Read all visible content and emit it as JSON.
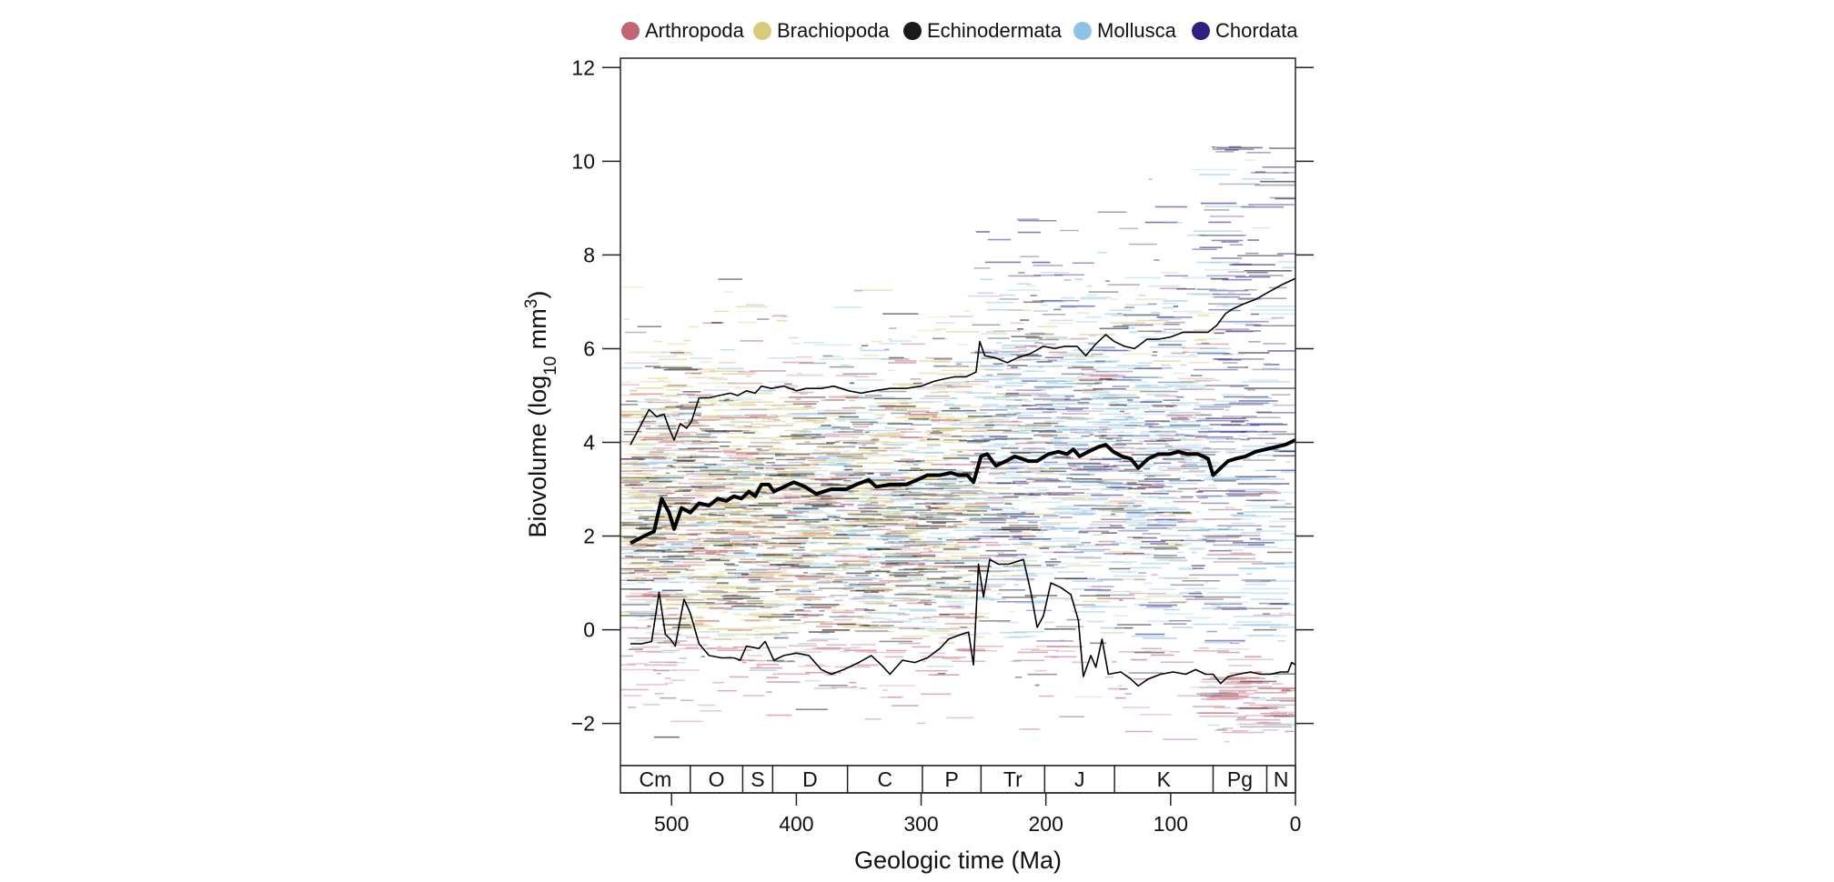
{
  "chart_data": {
    "type": "line",
    "xlabel": "Geologic time (Ma)",
    "ylabel_parts": {
      "base": "Biovolume (log",
      "sub": "10",
      "unit": " mm",
      "sup": "3",
      "close": ")"
    },
    "xlim": [
      541,
      0
    ],
    "ylim": [
      -2.9,
      12.2
    ],
    "x_ticks": [
      500,
      400,
      300,
      200,
      100,
      0
    ],
    "y_ticks": [
      -2,
      0,
      2,
      4,
      6,
      8,
      10,
      12
    ],
    "grid": false,
    "legend_position": "top",
    "legend": [
      {
        "name": "Arthropoda",
        "color": "#c26474"
      },
      {
        "name": "Brachiopoda",
        "color": "#d7cb7c"
      },
      {
        "name": "Echinodermata",
        "color": "#1a1a1a"
      },
      {
        "name": "Mollusca",
        "color": "#8ec3e6"
      },
      {
        "name": "Chordata",
        "color": "#2e2080"
      }
    ],
    "periods": [
      {
        "label": "Cm",
        "start": 541,
        "end": 485
      },
      {
        "label": "O",
        "start": 485,
        "end": 443
      },
      {
        "label": "S",
        "start": 443,
        "end": 419
      },
      {
        "label": "D",
        "start": 419,
        "end": 359
      },
      {
        "label": "C",
        "start": 359,
        "end": 299
      },
      {
        "label": "P",
        "start": 299,
        "end": 252
      },
      {
        "label": "Tr",
        "start": 252,
        "end": 201
      },
      {
        "label": "J",
        "start": 201,
        "end": 145
      },
      {
        "label": "K",
        "start": 145,
        "end": 66
      },
      {
        "label": "Pg",
        "start": 66,
        "end": 23
      },
      {
        "label": "N",
        "start": 23,
        "end": 0
      }
    ],
    "series": [
      {
        "role": "mean",
        "color": "#000000",
        "points": [
          [
            533,
            1.85
          ],
          [
            522,
            2.0
          ],
          [
            514,
            2.1
          ],
          [
            508,
            2.8
          ],
          [
            502,
            2.5
          ],
          [
            498,
            2.15
          ],
          [
            492,
            2.6
          ],
          [
            485,
            2.5
          ],
          [
            478,
            2.7
          ],
          [
            470,
            2.65
          ],
          [
            463,
            2.8
          ],
          [
            456,
            2.75
          ],
          [
            450,
            2.85
          ],
          [
            444,
            2.8
          ],
          [
            438,
            2.95
          ],
          [
            433,
            2.85
          ],
          [
            428,
            3.1
          ],
          [
            422,
            3.1
          ],
          [
            418,
            2.95
          ],
          [
            410,
            3.05
          ],
          [
            402,
            3.15
          ],
          [
            393,
            3.05
          ],
          [
            384,
            2.9
          ],
          [
            372,
            3.0
          ],
          [
            360,
            3.0
          ],
          [
            352,
            3.1
          ],
          [
            342,
            3.2
          ],
          [
            336,
            3.05
          ],
          [
            325,
            3.1
          ],
          [
            312,
            3.1
          ],
          [
            303,
            3.2
          ],
          [
            295,
            3.3
          ],
          [
            285,
            3.3
          ],
          [
            276,
            3.35
          ],
          [
            270,
            3.3
          ],
          [
            263,
            3.3
          ],
          [
            258,
            3.15
          ],
          [
            252,
            3.7
          ],
          [
            247,
            3.75
          ],
          [
            240,
            3.5
          ],
          [
            232,
            3.6
          ],
          [
            225,
            3.7
          ],
          [
            214,
            3.6
          ],
          [
            207,
            3.6
          ],
          [
            198,
            3.75
          ],
          [
            190,
            3.8
          ],
          [
            183,
            3.75
          ],
          [
            178,
            3.85
          ],
          [
            173,
            3.7
          ],
          [
            166,
            3.8
          ],
          [
            158,
            3.9
          ],
          [
            152,
            3.95
          ],
          [
            146,
            3.8
          ],
          [
            139,
            3.7
          ],
          [
            132,
            3.65
          ],
          [
            126,
            3.45
          ],
          [
            118,
            3.65
          ],
          [
            110,
            3.75
          ],
          [
            101,
            3.75
          ],
          [
            94,
            3.8
          ],
          [
            86,
            3.75
          ],
          [
            78,
            3.75
          ],
          [
            70,
            3.65
          ],
          [
            66,
            3.3
          ],
          [
            60,
            3.45
          ],
          [
            54,
            3.6
          ],
          [
            48,
            3.65
          ],
          [
            40,
            3.7
          ],
          [
            32,
            3.8
          ],
          [
            24,
            3.85
          ],
          [
            16,
            3.9
          ],
          [
            8,
            3.95
          ],
          [
            0,
            4.05
          ]
        ]
      },
      {
        "role": "upper",
        "color": "#000000",
        "points": [
          [
            533,
            3.95
          ],
          [
            525,
            4.35
          ],
          [
            518,
            4.7
          ],
          [
            512,
            4.55
          ],
          [
            506,
            4.6
          ],
          [
            502,
            4.3
          ],
          [
            498,
            4.05
          ],
          [
            493,
            4.4
          ],
          [
            488,
            4.3
          ],
          [
            484,
            4.45
          ],
          [
            478,
            4.95
          ],
          [
            470,
            4.95
          ],
          [
            462,
            5.0
          ],
          [
            453,
            5.05
          ],
          [
            447,
            5.0
          ],
          [
            440,
            5.1
          ],
          [
            433,
            5.05
          ],
          [
            428,
            5.2
          ],
          [
            420,
            5.15
          ],
          [
            410,
            5.2
          ],
          [
            400,
            5.1
          ],
          [
            392,
            5.15
          ],
          [
            380,
            5.15
          ],
          [
            370,
            5.2
          ],
          [
            358,
            5.1
          ],
          [
            348,
            5.05
          ],
          [
            338,
            5.1
          ],
          [
            325,
            5.15
          ],
          [
            312,
            5.15
          ],
          [
            300,
            5.2
          ],
          [
            290,
            5.3
          ],
          [
            282,
            5.35
          ],
          [
            273,
            5.4
          ],
          [
            264,
            5.4
          ],
          [
            256,
            5.5
          ],
          [
            253,
            6.15
          ],
          [
            249,
            5.85
          ],
          [
            240,
            5.8
          ],
          [
            231,
            5.7
          ],
          [
            223,
            5.8
          ],
          [
            212,
            5.9
          ],
          [
            202,
            6.05
          ],
          [
            193,
            6.0
          ],
          [
            185,
            6.05
          ],
          [
            175,
            6.05
          ],
          [
            168,
            5.85
          ],
          [
            160,
            6.1
          ],
          [
            152,
            6.3
          ],
          [
            145,
            6.15
          ],
          [
            137,
            6.05
          ],
          [
            129,
            6.0
          ],
          [
            119,
            6.2
          ],
          [
            110,
            6.2
          ],
          [
            100,
            6.25
          ],
          [
            90,
            6.35
          ],
          [
            80,
            6.35
          ],
          [
            70,
            6.35
          ],
          [
            63,
            6.5
          ],
          [
            56,
            6.75
          ],
          [
            50,
            6.85
          ],
          [
            42,
            6.95
          ],
          [
            32,
            7.05
          ],
          [
            22,
            7.2
          ],
          [
            12,
            7.35
          ],
          [
            0,
            7.5
          ]
        ]
      },
      {
        "role": "lower",
        "color": "#000000",
        "points": [
          [
            533,
            -0.3
          ],
          [
            524,
            -0.3
          ],
          [
            516,
            -0.25
          ],
          [
            510,
            0.8
          ],
          [
            505,
            -0.1
          ],
          [
            501,
            -0.2
          ],
          [
            497,
            -0.35
          ],
          [
            490,
            0.65
          ],
          [
            485,
            0.35
          ],
          [
            478,
            -0.3
          ],
          [
            470,
            -0.55
          ],
          [
            460,
            -0.6
          ],
          [
            450,
            -0.6
          ],
          [
            445,
            -0.65
          ],
          [
            440,
            -0.35
          ],
          [
            430,
            -0.4
          ],
          [
            425,
            -0.25
          ],
          [
            418,
            -0.65
          ],
          [
            410,
            -0.55
          ],
          [
            400,
            -0.5
          ],
          [
            390,
            -0.55
          ],
          [
            380,
            -0.85
          ],
          [
            372,
            -0.95
          ],
          [
            362,
            -0.85
          ],
          [
            350,
            -0.7
          ],
          [
            340,
            -0.55
          ],
          [
            332,
            -0.75
          ],
          [
            325,
            -0.95
          ],
          [
            315,
            -0.65
          ],
          [
            305,
            -0.7
          ],
          [
            295,
            -0.6
          ],
          [
            285,
            -0.4
          ],
          [
            278,
            -0.2
          ],
          [
            268,
            -0.1
          ],
          [
            262,
            -0.05
          ],
          [
            258,
            -0.75
          ],
          [
            254,
            1.4
          ],
          [
            250,
            0.7
          ],
          [
            245,
            1.5
          ],
          [
            238,
            1.4
          ],
          [
            230,
            1.4
          ],
          [
            218,
            1.5
          ],
          [
            212,
            0.8
          ],
          [
            207,
            0.05
          ],
          [
            202,
            0.3
          ],
          [
            196,
            1.0
          ],
          [
            188,
            0.9
          ],
          [
            180,
            0.75
          ],
          [
            174,
            0.2
          ],
          [
            170,
            -1.0
          ],
          [
            164,
            -0.55
          ],
          [
            160,
            -0.8
          ],
          [
            155,
            -0.2
          ],
          [
            150,
            -0.95
          ],
          [
            140,
            -0.9
          ],
          [
            132,
            -1.05
          ],
          [
            126,
            -1.2
          ],
          [
            118,
            -1.05
          ],
          [
            108,
            -0.95
          ],
          [
            98,
            -0.9
          ],
          [
            88,
            -0.95
          ],
          [
            80,
            -0.85
          ],
          [
            72,
            -0.95
          ],
          [
            66,
            -0.95
          ],
          [
            60,
            -1.15
          ],
          [
            54,
            -1.0
          ],
          [
            46,
            -0.95
          ],
          [
            36,
            -0.9
          ],
          [
            28,
            -0.95
          ],
          [
            20,
            -0.95
          ],
          [
            12,
            -0.9
          ],
          [
            6,
            -0.9
          ],
          [
            3,
            -0.7
          ],
          [
            0,
            -0.75
          ]
        ]
      }
    ]
  }
}
